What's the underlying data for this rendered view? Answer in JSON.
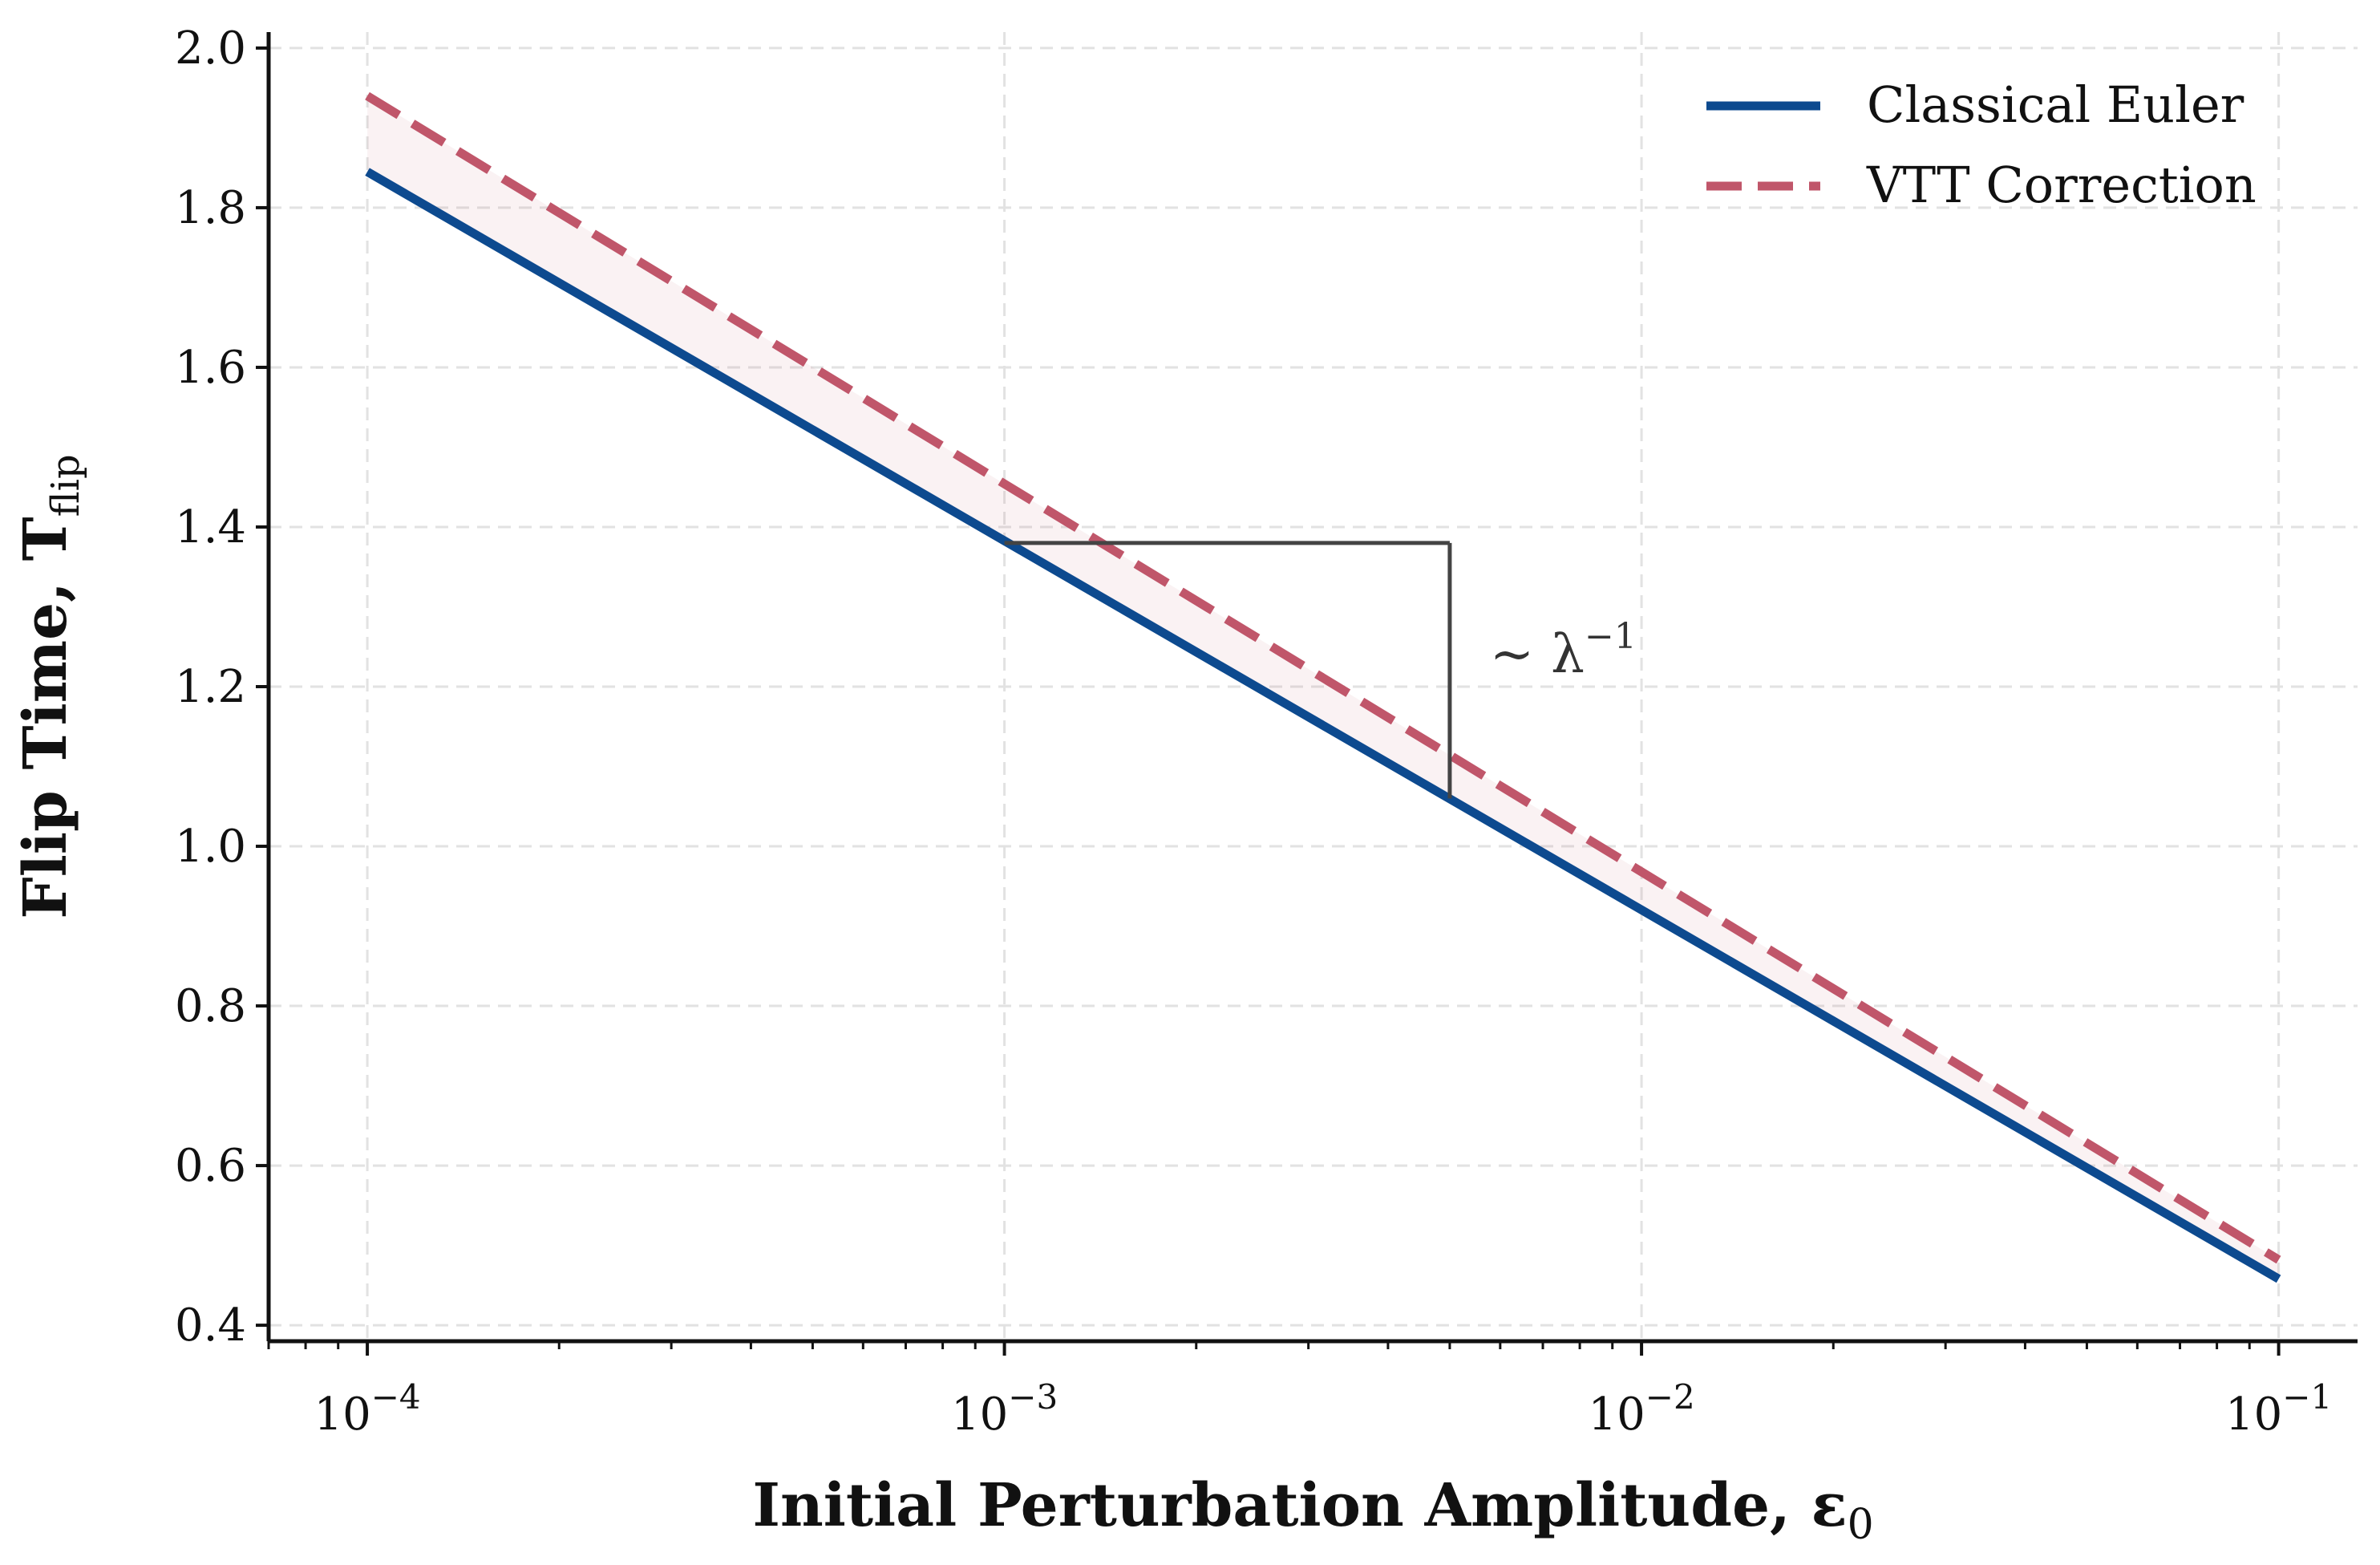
{
  "chart_data": {
    "type": "line",
    "x_scale": "log",
    "xlabel": "Initial Perturbation Amplitude, ε",
    "xlabel_sub": "0",
    "ylabel": "Flip Time, T",
    "ylabel_sub": "flip",
    "xlim": [
      7e-05,
      0.133
    ],
    "ylim": [
      0.38,
      2.02
    ],
    "x_ticks": [
      {
        "value": 0.0001,
        "base": "10",
        "exp": "−4"
      },
      {
        "value": 0.001,
        "base": "10",
        "exp": "−3"
      },
      {
        "value": 0.01,
        "base": "10",
        "exp": "−2"
      },
      {
        "value": 0.1,
        "base": "10",
        "exp": "−1"
      }
    ],
    "y_ticks": [
      {
        "value": 0.4,
        "label": "0.4"
      },
      {
        "value": 0.6,
        "label": "0.6"
      },
      {
        "value": 0.8,
        "label": "0.8"
      },
      {
        "value": 1.0,
        "label": "1.0"
      },
      {
        "value": 1.2,
        "label": "1.2"
      },
      {
        "value": 1.4,
        "label": "1.4"
      },
      {
        "value": 1.6,
        "label": "1.6"
      },
      {
        "value": 1.8,
        "label": "1.8"
      },
      {
        "value": 2.0,
        "label": "2.0"
      }
    ],
    "grid": true,
    "legend_position": "top-right",
    "series": [
      {
        "name": "Classical Euler",
        "color": "#0d4a8f",
        "style": "solid",
        "x": [
          0.0001,
          0.1
        ],
        "y": [
          1.845,
          0.458
        ]
      },
      {
        "name": "VTT Correction",
        "color": "#c0566a",
        "style": "dashed",
        "x": [
          0.0001,
          0.1
        ],
        "y": [
          1.94,
          0.482
        ]
      }
    ],
    "fill_between": {
      "color": "#c0566a",
      "opacity": 0.08
    },
    "annotation": {
      "text": "~ λ",
      "superscript": "−1",
      "triangle": {
        "x_start": 0.001,
        "x_end": 0.005,
        "y_top": 1.38,
        "y_bottom": 1.06
      }
    }
  }
}
